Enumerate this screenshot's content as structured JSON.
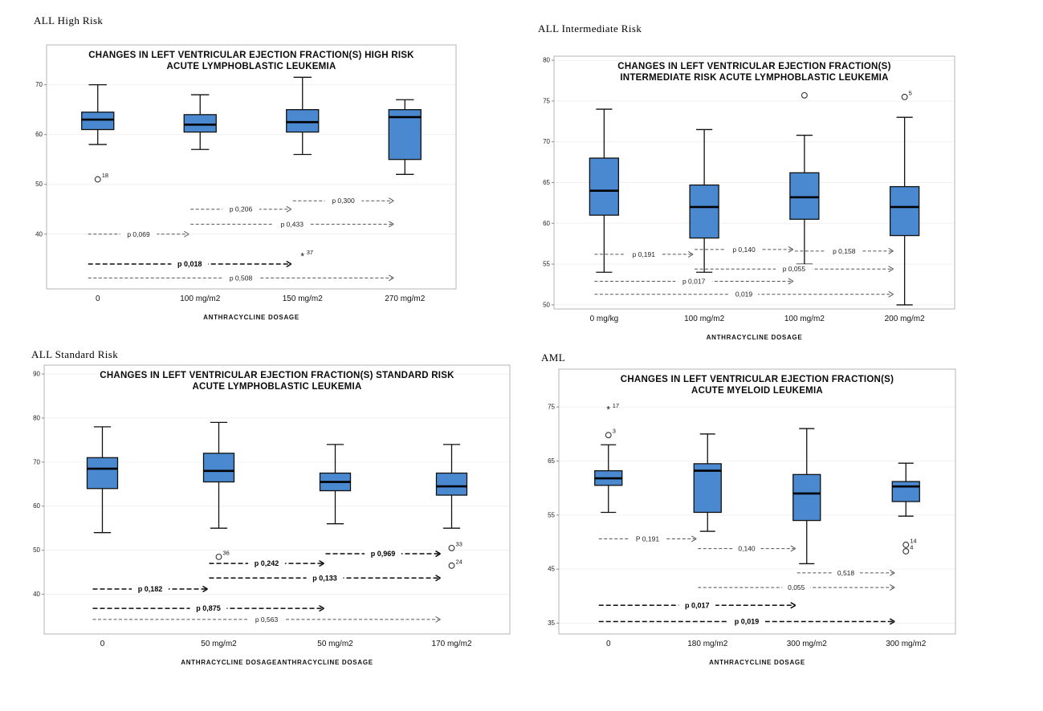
{
  "style": {
    "background": "#ffffff",
    "box_fill": "#4a89cf",
    "box_stroke": "#111111",
    "frame_stroke": "#b5b5b5"
  },
  "chart_data": [
    {
      "type": "boxplot",
      "corner_label": "ALL High Risk",
      "title_lines": [
        "CHANGES IN LEFT VENTRICULAR EJECTION FRACTION(S) HIGH RISK",
        "ACUTE LYMPHOBLASTIC LEUKEMIA"
      ],
      "xlabel": "ANTHRACYCLINE DOSAGE",
      "ylim": [
        29,
        78
      ],
      "y_ticks": [
        40,
        50,
        60,
        70
      ],
      "categories": [
        "0",
        "100 mg/m2",
        "150 mg/m2",
        "270 mg/m2"
      ],
      "boxes": [
        {
          "whisker_low": 58,
          "q1": 61,
          "median": 63,
          "q3": 64.5,
          "whisker_high": 70,
          "outliers": [
            {
              "value": 51,
              "label": "18",
              "marker": "circle"
            }
          ]
        },
        {
          "whisker_low": 57,
          "q1": 60.5,
          "median": 62,
          "q3": 64,
          "whisker_high": 68,
          "outliers": []
        },
        {
          "whisker_low": 56,
          "q1": 60.5,
          "median": 62.5,
          "q3": 65,
          "whisker_high": 71.5,
          "outliers": [
            {
              "value": 35.5,
              "label": "37",
              "marker": "asterisk"
            }
          ]
        },
        {
          "whisker_low": 52,
          "q1": 55,
          "median": 63.5,
          "q3": 65,
          "whisker_high": 67,
          "outliers": []
        }
      ],
      "p_annotations": [
        {
          "from_group": 2,
          "to_group": 3,
          "y": 46.7,
          "label": "p 0,300",
          "bold": false
        },
        {
          "from_group": 1,
          "to_group": 2,
          "y": 45,
          "label": "p 0,206",
          "bold": false
        },
        {
          "from_group": 1,
          "to_group": 3,
          "y": 42,
          "label": "p 0,433",
          "bold": false
        },
        {
          "from_group": 0,
          "to_group": 1,
          "y": 40,
          "label": "p 0,069",
          "bold": false
        },
        {
          "from_group": 0,
          "to_group": 2,
          "y": 34,
          "label": "p 0,018",
          "bold": true
        },
        {
          "from_group": 0,
          "to_group": 3,
          "y": 31.2,
          "label": "p 0,508",
          "bold": false
        }
      ]
    },
    {
      "type": "boxplot",
      "corner_label": "ALL Intermediate Risk",
      "title_lines": [
        "CHANGES IN LEFT VENTRICULAR EJECTION FRACTION(S)",
        "INTERMEDIATE RISK ACUTE LYMPHOBLASTIC LEUKEMIA"
      ],
      "xlabel": "ANTHRACYCLINE DOSAGE",
      "ylim": [
        49.5,
        80.5
      ],
      "y_ticks": [
        50,
        55,
        60,
        65,
        70,
        75,
        80
      ],
      "categories": [
        "0 mg/kg",
        "100 mg/m2",
        "100 mg/m2",
        "200 mg/m2"
      ],
      "boxes": [
        {
          "whisker_low": 54,
          "q1": 61,
          "median": 64,
          "q3": 68,
          "whisker_high": 74,
          "outliers": []
        },
        {
          "whisker_low": 54,
          "q1": 58.2,
          "median": 62,
          "q3": 64.7,
          "whisker_high": 71.5,
          "outliers": []
        },
        {
          "whisker_low": 55,
          "q1": 60.5,
          "median": 63.2,
          "q3": 66.2,
          "whisker_high": 70.8,
          "outliers": [
            {
              "value": 75.7,
              "label": "",
              "marker": "circle"
            }
          ]
        },
        {
          "whisker_low": 50,
          "q1": 58.5,
          "median": 62,
          "q3": 64.5,
          "whisker_high": 73,
          "outliers": [
            {
              "value": 75.5,
              "label": "5",
              "marker": "circle"
            }
          ]
        }
      ],
      "p_annotations": [
        {
          "from_group": 0,
          "to_group": 1,
          "y": 56.2,
          "label": "p 0,191",
          "bold": false
        },
        {
          "from_group": 1,
          "to_group": 2,
          "y": 56.8,
          "label": "p 0,140",
          "bold": false
        },
        {
          "from_group": 2,
          "to_group": 3,
          "y": 56.6,
          "label": "p 0,158",
          "bold": false
        },
        {
          "from_group": 1,
          "to_group": 3,
          "y": 54.4,
          "label": "p 0,055",
          "bold": false
        },
        {
          "from_group": 0,
          "to_group": 2,
          "y": 52.9,
          "label": "p 0,017",
          "bold": false
        },
        {
          "from_group": 0,
          "to_group": 3,
          "y": 51.3,
          "label": "0,019",
          "bold": false
        }
      ]
    },
    {
      "type": "boxplot",
      "corner_label": "ALL Standard Risk",
      "title_lines": [
        "CHANGES IN LEFT VENTRICULAR EJECTION FRACTION(S) STANDARD RISK",
        "ACUTE LYMPHOBLASTIC LEUKEMIA"
      ],
      "xlabel": "ANTHRACYCLINE DOSAGEANTHRACYCLINE DOSAGE",
      "ylim": [
        31,
        92
      ],
      "y_ticks": [
        40,
        50,
        60,
        70,
        80,
        90
      ],
      "categories": [
        "0",
        "50 mg/m2",
        "50 mg/m2",
        "170 mg/m2"
      ],
      "boxes": [
        {
          "whisker_low": 54,
          "q1": 64,
          "median": 68.5,
          "q3": 71,
          "whisker_high": 78,
          "outliers": []
        },
        {
          "whisker_low": 55,
          "q1": 65.5,
          "median": 68,
          "q3": 72,
          "whisker_high": 79,
          "outliers": [
            {
              "value": 48.5,
              "label": "36",
              "marker": "circle"
            }
          ]
        },
        {
          "whisker_low": 56,
          "q1": 63.5,
          "median": 65.5,
          "q3": 67.5,
          "whisker_high": 74,
          "outliers": []
        },
        {
          "whisker_low": 55,
          "q1": 62.5,
          "median": 64.5,
          "q3": 67.5,
          "whisker_high": 74,
          "outliers": [
            {
              "value": 50.5,
              "label": "33",
              "marker": "circle"
            },
            {
              "value": 46.5,
              "label": "24",
              "marker": "circle"
            }
          ]
        }
      ],
      "p_annotations": [
        {
          "from_group": 2,
          "to_group": 3,
          "y": 49.2,
          "label": "p 0,969",
          "bold": true
        },
        {
          "from_group": 1,
          "to_group": 2,
          "y": 47,
          "label": "p 0,242",
          "bold": true
        },
        {
          "from_group": 1,
          "to_group": 3,
          "y": 43.7,
          "label": "p 0,133",
          "bold": true
        },
        {
          "from_group": 0,
          "to_group": 1,
          "y": 41.2,
          "label": "p 0,182",
          "bold": true
        },
        {
          "from_group": 0,
          "to_group": 2,
          "y": 36.8,
          "label": "p 0,875",
          "bold": true
        },
        {
          "from_group": 0,
          "to_group": 3,
          "y": 34.3,
          "label": "p 0,563",
          "bold": false
        }
      ]
    },
    {
      "type": "boxplot",
      "corner_label": "AML",
      "title_lines": [
        "CHANGES IN LEFT VENTRICULAR EJECTION FRACTION(S)",
        "ACUTE MYELOID LEUKEMIA"
      ],
      "xlabel": "ANTHRACYCLINE DOSAGE",
      "ylim": [
        33,
        82
      ],
      "y_ticks": [
        35,
        45,
        55,
        65,
        75
      ],
      "categories": [
        "0",
        "180 mg/m2",
        "300 mg/m2",
        "300 mg/m2"
      ],
      "boxes": [
        {
          "whisker_low": 55.5,
          "q1": 60.5,
          "median": 61.8,
          "q3": 63.2,
          "whisker_high": 68,
          "outliers": [
            {
              "value": 69.8,
              "label": "3",
              "marker": "circle"
            },
            {
              "value": 74.5,
              "label": "17",
              "marker": "asterisk"
            }
          ]
        },
        {
          "whisker_low": 52,
          "q1": 55.5,
          "median": 63.2,
          "q3": 64.5,
          "whisker_high": 70,
          "outliers": []
        },
        {
          "whisker_low": 46,
          "q1": 54,
          "median": 59,
          "q3": 62.5,
          "whisker_high": 71,
          "outliers": []
        },
        {
          "whisker_low": 54.8,
          "q1": 57.5,
          "median": 60.3,
          "q3": 61.2,
          "whisker_high": 64.6,
          "outliers": [
            {
              "value": 49.5,
              "label": "14",
              "marker": "circle"
            },
            {
              "value": 48.3,
              "label": "4",
              "marker": "circle"
            }
          ]
        }
      ],
      "p_annotations": [
        {
          "from_group": 0,
          "to_group": 1,
          "y": 50.6,
          "label": "P 0,191",
          "bold": false
        },
        {
          "from_group": 1,
          "to_group": 2,
          "y": 48.8,
          "label": "0,140",
          "bold": false
        },
        {
          "from_group": 2,
          "to_group": 3,
          "y": 44.3,
          "label": "0,518",
          "bold": false
        },
        {
          "from_group": 1,
          "to_group": 3,
          "y": 41.6,
          "label": "0,055",
          "bold": false
        },
        {
          "from_group": 0,
          "to_group": 2,
          "y": 38.3,
          "label": "p 0,017",
          "bold": true
        },
        {
          "from_group": 0,
          "to_group": 3,
          "y": 35.3,
          "label": "p 0,019",
          "bold": true
        }
      ]
    }
  ]
}
